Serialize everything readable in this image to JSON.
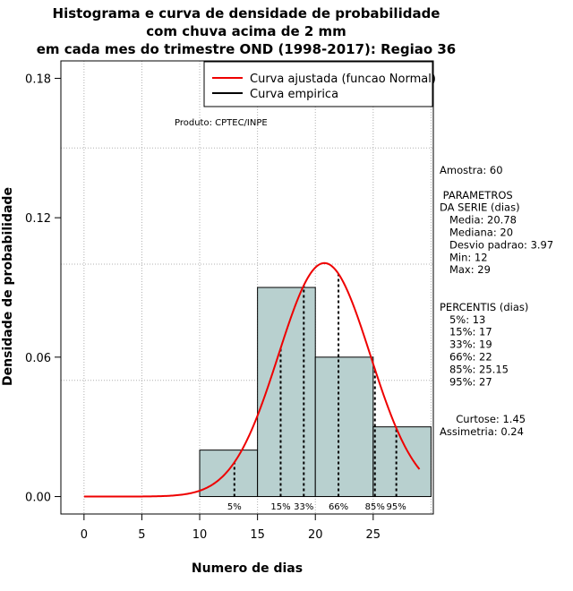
{
  "chart_data": {
    "type": "bar",
    "title_lines": [
      "Histograma e curva de densidade de probabilidade",
      "com chuva acima de 2 mm",
      "em cada mes do trimestre OND (1998-2017): Regiao 36"
    ],
    "xlabel": "Numero de dias",
    "ylabel": "Densidade de probabilidade",
    "xlim": [
      -2,
      30.2
    ],
    "ylim": [
      -0.0075,
      0.1875
    ],
    "xticks": [
      0,
      5,
      10,
      15,
      20,
      25
    ],
    "yticks": [
      0.0,
      0.06,
      0.12,
      0.18
    ],
    "ytick_labels": [
      "0.00",
      "0.06",
      "0.12",
      "0.18"
    ],
    "grid_y": [
      0.05,
      0.1,
      0.15
    ],
    "grid_x": [
      30
    ],
    "bins": [
      {
        "from": 10,
        "to": 15,
        "density": 0.02
      },
      {
        "from": 15,
        "to": 20,
        "density": 0.09
      },
      {
        "from": 20,
        "to": 25,
        "density": 0.06
      },
      {
        "from": 25,
        "to": 30,
        "density": 0.03
      }
    ],
    "normal_curve": {
      "mean": 20.78,
      "sd": 3.97,
      "x_from": 0,
      "x_to": 29
    },
    "percentiles": [
      {
        "label": "5%",
        "value": 13
      },
      {
        "label": "15%",
        "value": 17
      },
      {
        "label": "33%",
        "value": 19
      },
      {
        "label": "66%",
        "value": 22
      },
      {
        "label": "85%",
        "value": 25.15
      },
      {
        "label": "95%",
        "value": 27
      }
    ],
    "legend": [
      {
        "label": "Curva ajustada (funcao Normal)",
        "color": "#ee0000"
      },
      {
        "label": "Curva empirica",
        "color": "#000000"
      }
    ],
    "legend_position": "top-right",
    "product_note": "Produto: CPTEC/INPE",
    "colors": {
      "bar_fill": "#b8d0cf",
      "curve": "#ee0000",
      "grid": "#b0b0b0"
    }
  },
  "side_panel": {
    "lines": [
      "Amostra: 60",
      "",
      " PARAMETROS",
      "DA SERIE (dias)",
      "   Media: 20.78",
      "   Mediana: 20",
      "   Desvio padrao: 3.97",
      "   Min: 12",
      "   Max: 29",
      "",
      "",
      "PERCENTIS (dias)",
      "   5%: 13",
      "   15%: 17",
      "   33%: 19",
      "   66%: 22",
      "   85%: 25.15",
      "   95%: 27",
      "",
      "",
      "     Curtose: 1.45",
      "Assimetria: 0.24"
    ]
  }
}
